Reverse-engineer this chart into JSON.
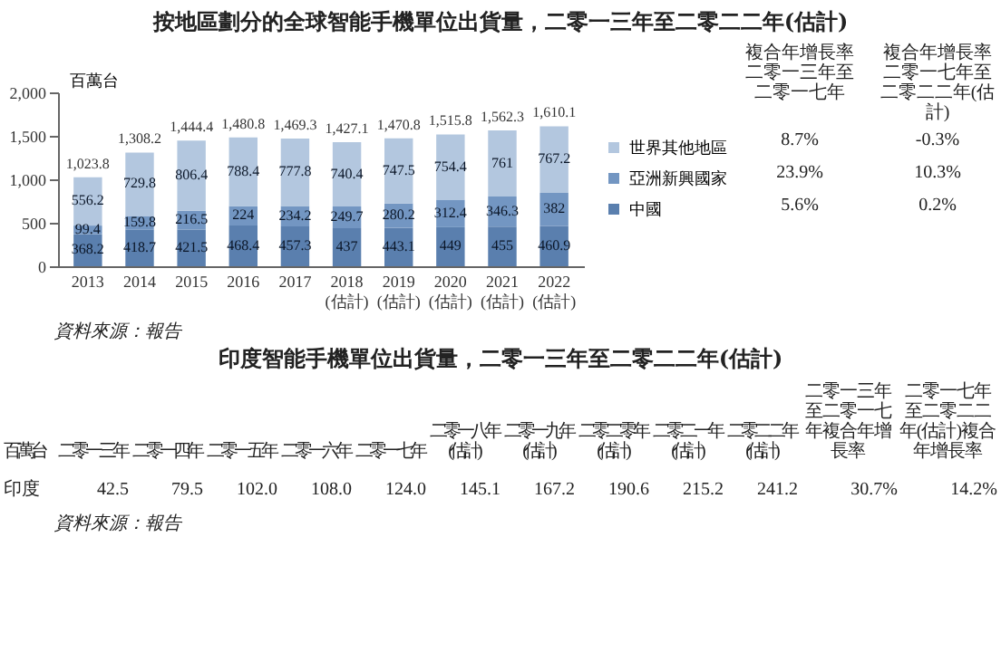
{
  "chart_data": [
    {
      "type": "bar",
      "stacked": true,
      "title": "按地區劃分的全球智能手機單位出貨量，二零一三年至二零二二年(估計)",
      "ylabel": "百萬台",
      "categories": [
        "2013",
        "2014",
        "2015",
        "2016",
        "2017",
        "2018 (估計)",
        "2019 (估計)",
        "2020 (估計)",
        "2021 (估計)",
        "2022 (估計)"
      ],
      "series": [
        {
          "name": "中國",
          "color": "#5a7fae",
          "values": [
            368.2,
            418.7,
            421.5,
            468.4,
            457.3,
            437.0,
            443.1,
            449.0,
            455.0,
            460.9
          ]
        },
        {
          "name": "亞洲新興國家",
          "color": "#7396c2",
          "values": [
            99.4,
            159.8,
            216.5,
            224.0,
            234.2,
            249.7,
            280.2,
            312.4,
            346.3,
            382.0
          ]
        },
        {
          "name": "世界其他地區",
          "color": "#b3c7df",
          "values": [
            556.2,
            729.8,
            806.4,
            788.4,
            777.8,
            740.4,
            747.5,
            754.4,
            761.0,
            767.2
          ]
        }
      ],
      "totals": [
        "1,023.8",
        "1,308.2",
        "1,444.4",
        "1,480.8",
        "1,469.3",
        "1,427.1",
        "1,470.8",
        "1,515.8",
        "1,562.3",
        "1,610.1"
      ],
      "data_labels": true,
      "ylim": [
        0,
        2000
      ],
      "yticks": [
        0,
        500,
        {
          "value": 1000,
          "label": "1,000"
        },
        {
          "value": 1500,
          "label": "1,500"
        },
        {
          "value": 2000,
          "label": "2,000"
        }
      ],
      "grid": false,
      "legend": "right",
      "annotations": [
        "複合年增長率二零一三年至二零一七年",
        "複合年增長率二零一七年至二零二二年(估計)",
        "8.7%",
        "-0.3%",
        "23.9%",
        "10.3%",
        "5.6%",
        "0.2%",
        "資料來源：報告"
      ]
    },
    {
      "type": "other",
      "title": "印度智能手機單位出貨量，二零一三年至二零二二年(估計)",
      "ylabel": "百萬台",
      "categories": [
        "二零一三年",
        "二零一四年",
        "二零一五年",
        "二零一六年",
        "二零一七年",
        "二零一八年 (估計)",
        "二零一九年 (估計)",
        "二零二零年 (估計)",
        "二零二一年 (估計)",
        "二零二二年 (估計)",
        "二零一三年至二零一七年複合年增長率",
        "二零一七年至二零二二年(估計)複合年增長率"
      ],
      "series": [
        {
          "name": "印度",
          "values": [
            42.5,
            79.5,
            102.0,
            108.0,
            124.0,
            145.1,
            167.2,
            190.6,
            215.2,
            241.2,
            30.7,
            14.2
          ],
          "value_labels": [
            "42.5",
            "79.5",
            "102.0",
            "108.0",
            "124.0",
            "145.1",
            "167.2",
            "190.6",
            "215.2",
            "241.2",
            "30.7%",
            "14.2%"
          ]
        }
      ],
      "annotations": [
        "資料來源：報告"
      ]
    }
  ]
}
